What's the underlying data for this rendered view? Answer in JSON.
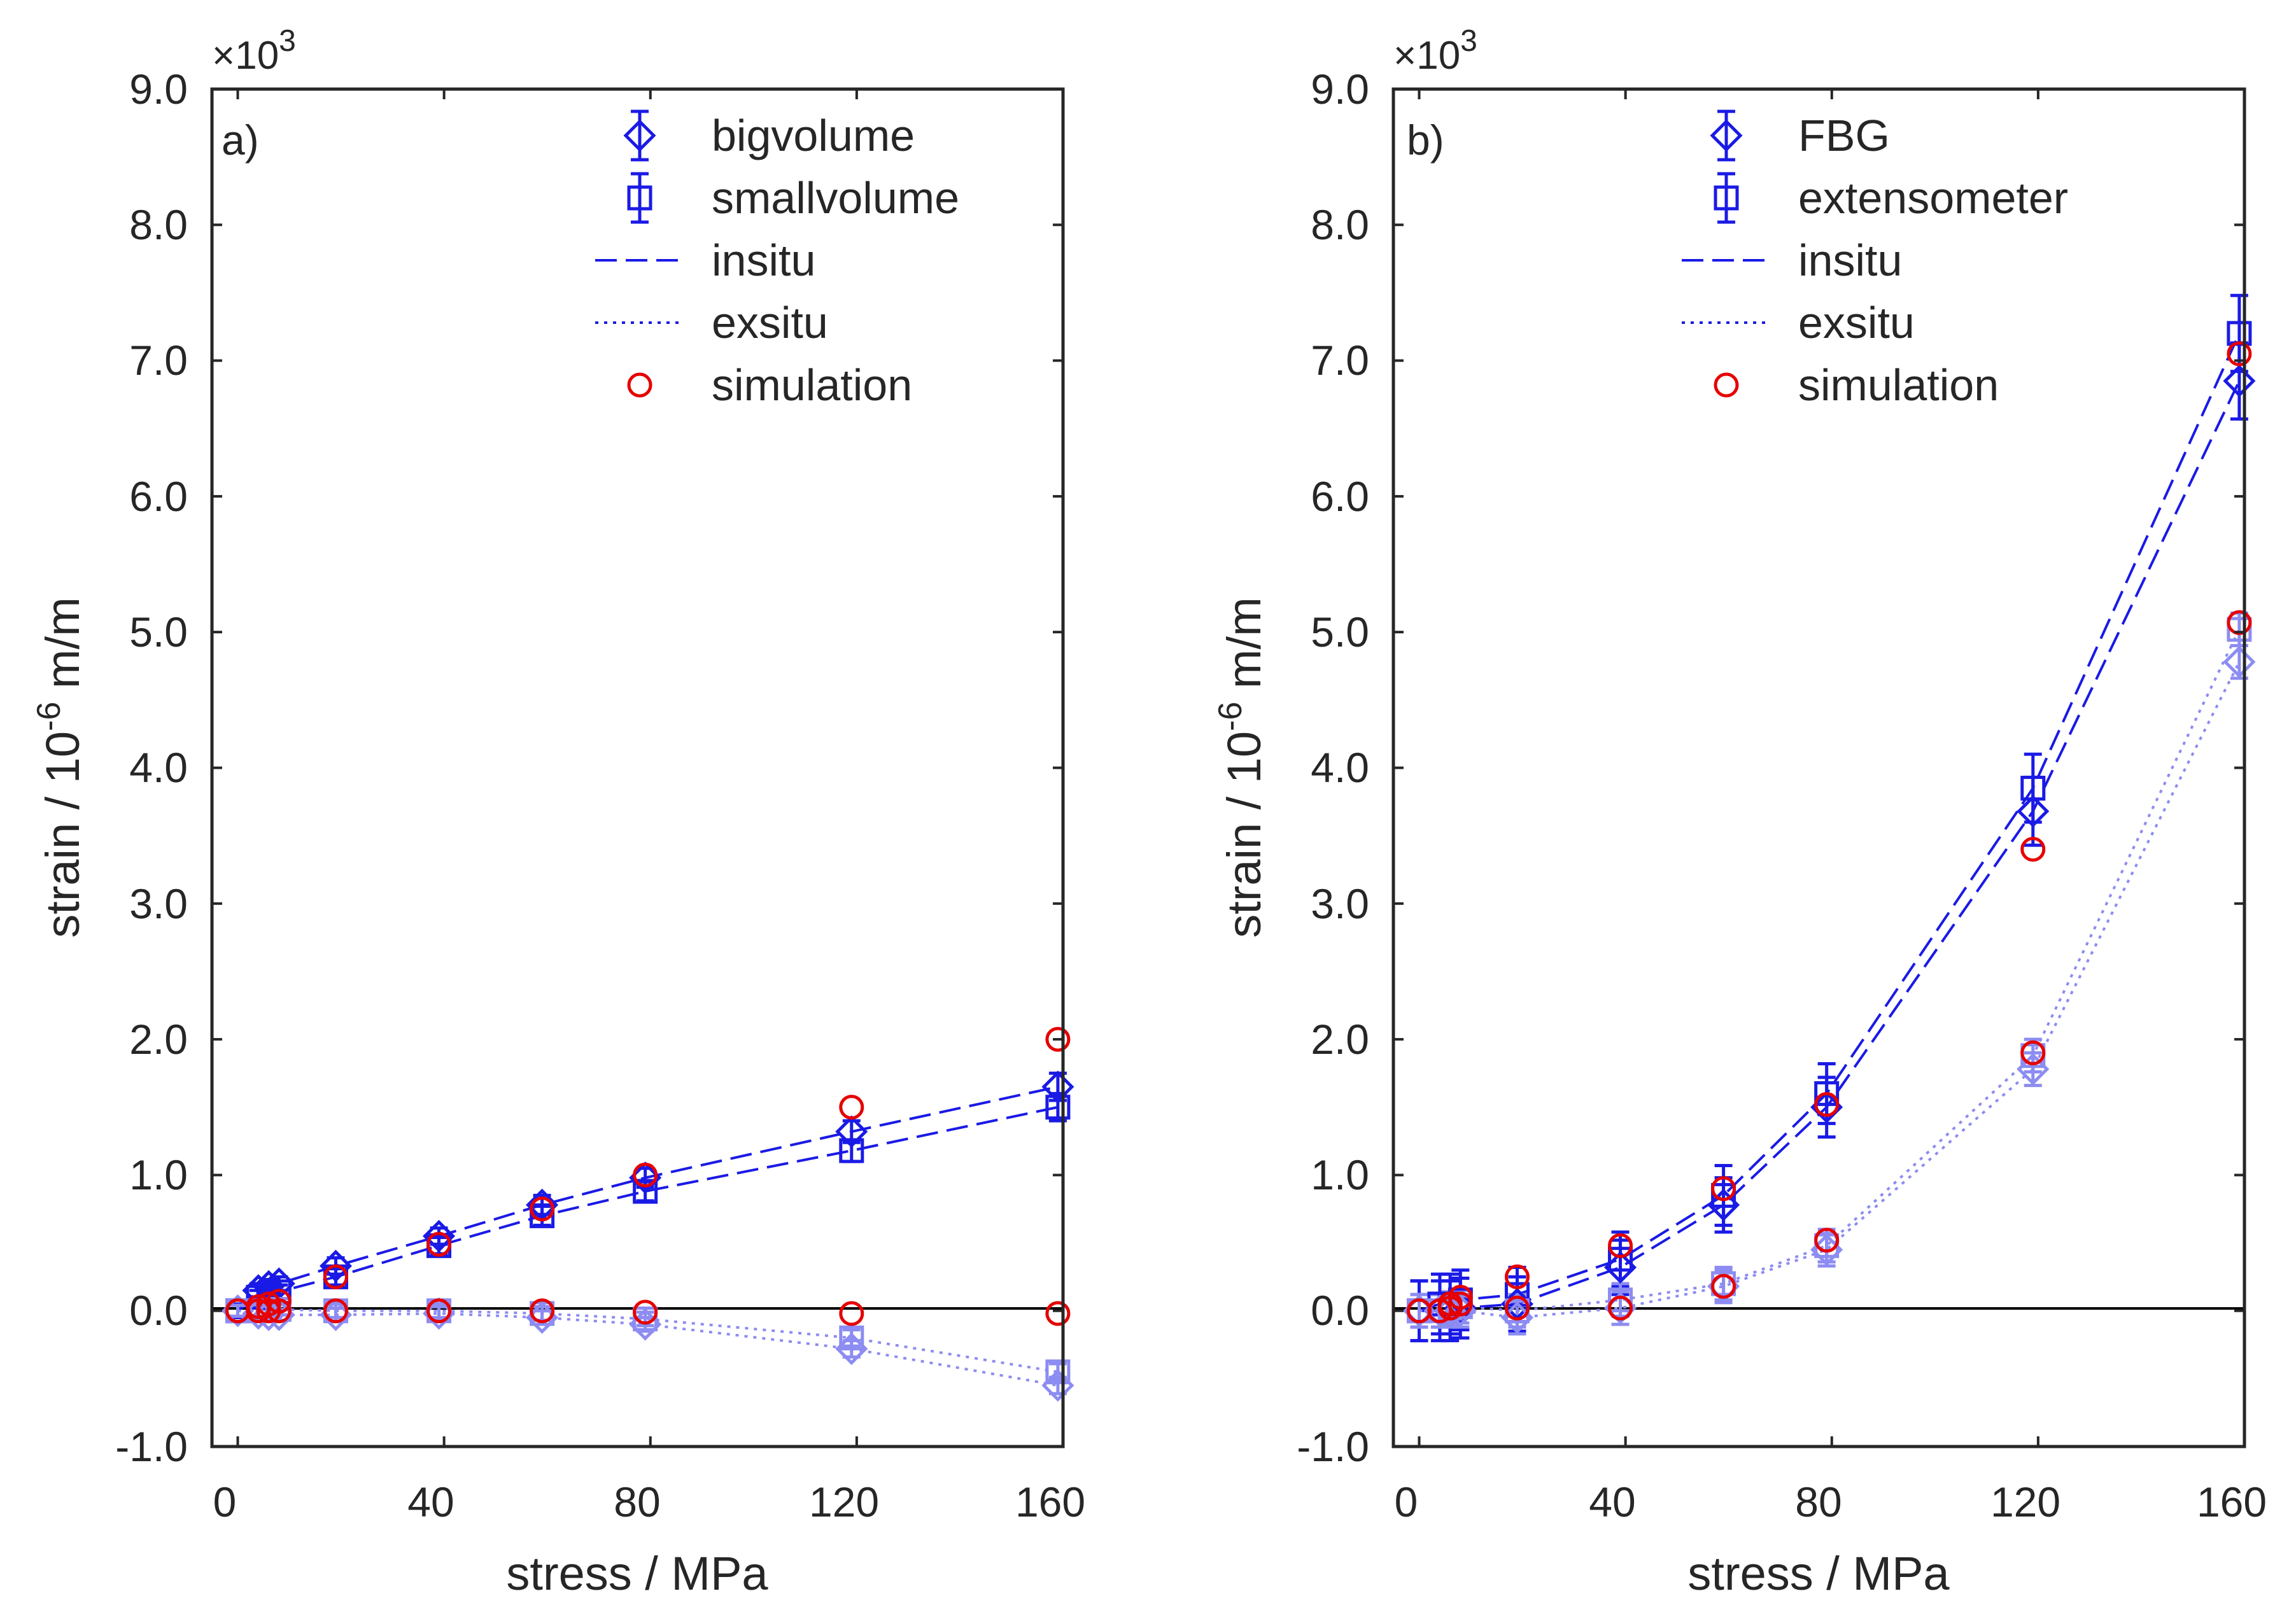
{
  "chart_data": [
    {
      "type": "scatter",
      "panel_label": "a)",
      "xlabel": "stress / MPa",
      "ylabel_parts": [
        "strain / 10",
        "-6",
        " m/m"
      ],
      "yscale_parts": [
        "×10",
        "3"
      ],
      "xlim": [
        -5,
        160
      ],
      "ylim": [
        -1.0,
        9.0
      ],
      "xticks": [
        "0",
        "40",
        "80",
        "120",
        "160"
      ],
      "yticks": [
        "-1.0",
        "0.0",
        "1.0",
        "2.0",
        "3.0",
        "4.0",
        "5.0",
        "6.0",
        "7.0",
        "8.0",
        "9.0"
      ],
      "legend": [
        "bigvolume",
        "smallvolume",
        "insitu",
        "exsitu",
        "simulation"
      ],
      "legend_position": "top-right",
      "x": [
        0,
        4,
        6,
        8,
        19,
        39,
        59,
        79,
        119,
        159
      ],
      "series": [
        {
          "name": "bigvolume insitu",
          "marker": "diamond",
          "color": "#1a1ae6",
          "line": "dashed",
          "values": [
            0.0,
            0.15,
            0.18,
            0.2,
            0.33,
            0.55,
            0.78,
            0.98,
            1.32,
            1.65
          ],
          "error": [
            0.05,
            0.05,
            0.05,
            0.05,
            0.06,
            0.06,
            0.07,
            0.07,
            0.08,
            0.1
          ]
        },
        {
          "name": "smallvolume insitu",
          "marker": "square",
          "color": "#1a1ae6",
          "line": "dashed",
          "values": [
            0.0,
            0.1,
            0.12,
            0.14,
            0.25,
            0.48,
            0.7,
            0.88,
            1.18,
            1.5
          ],
          "error": [
            0.05,
            0.05,
            0.05,
            0.05,
            0.06,
            0.06,
            0.07,
            0.07,
            0.08,
            0.1
          ]
        },
        {
          "name": "bigvolume exsitu",
          "marker": "diamond",
          "color": "#8c8cf2",
          "line": "dotted",
          "values": [
            0.0,
            -0.02,
            -0.03,
            -0.03,
            -0.03,
            -0.02,
            -0.05,
            -0.1,
            -0.28,
            -0.55
          ],
          "error": [
            0.04,
            0.04,
            0.04,
            0.04,
            0.05,
            0.05,
            0.05,
            0.05,
            0.06,
            0.06
          ]
        },
        {
          "name": "smallvolume exsitu",
          "marker": "square",
          "color": "#8c8cf2",
          "line": "dotted",
          "values": [
            0.0,
            0.0,
            0.0,
            0.01,
            0.0,
            0.0,
            -0.02,
            -0.06,
            -0.2,
            -0.45
          ],
          "error": [
            0.04,
            0.04,
            0.04,
            0.04,
            0.05,
            0.05,
            0.05,
            0.05,
            0.06,
            0.06
          ]
        },
        {
          "name": "simulation insitu",
          "marker": "circle",
          "color": "#e60000",
          "line": "none",
          "values": [
            0.0,
            0.03,
            0.05,
            0.07,
            0.25,
            0.49,
            0.75,
            1.0,
            1.5,
            2.0
          ]
        },
        {
          "name": "simulation exsitu",
          "marker": "circle",
          "color": "#e60000",
          "line": "none",
          "values": [
            0.0,
            0.0,
            0.0,
            0.0,
            0.0,
            0.0,
            0.0,
            -0.01,
            -0.02,
            -0.02
          ]
        }
      ]
    },
    {
      "type": "scatter",
      "panel_label": "b)",
      "xlabel": "stress / MPa",
      "ylabel_parts": [
        "strain / 10",
        "-6",
        " m/m"
      ],
      "yscale_parts": [
        "×10",
        "3"
      ],
      "xlim": [
        -5,
        160
      ],
      "ylim": [
        -1.0,
        9.0
      ],
      "xticks": [
        "0",
        "40",
        "80",
        "120",
        "160"
      ],
      "yticks": [
        "-1.0",
        "0.0",
        "1.0",
        "2.0",
        "3.0",
        "4.0",
        "5.0",
        "6.0",
        "7.0",
        "8.0",
        "9.0"
      ],
      "legend": [
        "FBG",
        "extensometer",
        "insitu",
        "exsitu",
        "simulation"
      ],
      "legend_position": "top-center",
      "x": [
        0,
        4,
        6,
        8,
        19,
        39,
        59,
        79,
        119,
        159
      ],
      "series": [
        {
          "name": "FBG insitu",
          "marker": "diamond",
          "color": "#1a1ae6",
          "line": "dashed",
          "values": [
            0.0,
            0.0,
            0.0,
            0.02,
            0.05,
            0.32,
            0.78,
            1.5,
            3.68,
            6.85
          ],
          "error": [
            0.22,
            0.22,
            0.22,
            0.22,
            0.2,
            0.2,
            0.2,
            0.22,
            0.25,
            0.28
          ]
        },
        {
          "name": "extensometer insitu",
          "marker": "square",
          "color": "#1a1ae6",
          "line": "dashed",
          "values": [
            0.0,
            0.05,
            0.05,
            0.08,
            0.12,
            0.38,
            0.85,
            1.6,
            3.85,
            7.2
          ],
          "error": [
            0.22,
            0.22,
            0.22,
            0.22,
            0.2,
            0.2,
            0.22,
            0.22,
            0.25,
            0.28
          ]
        },
        {
          "name": "FBG exsitu",
          "marker": "diamond",
          "color": "#8c8cf2",
          "line": "dotted",
          "values": [
            0.0,
            0.0,
            0.0,
            0.0,
            -0.05,
            0.02,
            0.18,
            0.45,
            1.78,
            4.78
          ],
          "error": [
            0.12,
            0.12,
            0.12,
            0.12,
            0.12,
            0.12,
            0.12,
            0.12,
            0.12,
            0.12
          ]
        },
        {
          "name": "extensometer exsitu",
          "marker": "square",
          "color": "#8c8cf2",
          "line": "dotted",
          "values": [
            0.0,
            0.0,
            0.02,
            0.03,
            0.0,
            0.08,
            0.2,
            0.48,
            1.88,
            5.02
          ],
          "error": [
            0.12,
            0.12,
            0.12,
            0.12,
            0.12,
            0.12,
            0.12,
            0.12,
            0.12,
            0.12
          ]
        },
        {
          "name": "simulation insitu",
          "marker": "circle",
          "color": "#e60000",
          "line": "none",
          "values": [
            0.0,
            0.0,
            0.05,
            0.1,
            0.25,
            0.48,
            0.9,
            1.52,
            3.4,
            7.05
          ]
        },
        {
          "name": "simulation exsitu",
          "marker": "circle",
          "color": "#e60000",
          "line": "none",
          "values": [
            0.0,
            0.0,
            0.02,
            0.05,
            0.02,
            0.02,
            0.18,
            0.52,
            1.9,
            5.07
          ]
        }
      ]
    }
  ]
}
